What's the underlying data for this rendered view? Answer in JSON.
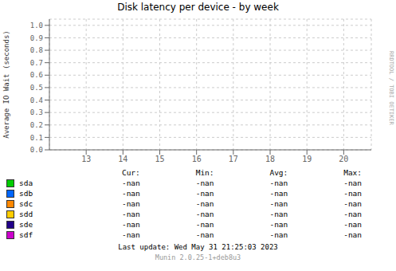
{
  "chart_data": {
    "type": "line",
    "title": "Disk latency per device - by week",
    "y_label": "Average IO Wait (seconds)",
    "x": [],
    "xlim": [
      12.0,
      20.75
    ],
    "xticks": [
      13,
      14,
      15,
      16,
      17,
      18,
      19,
      20
    ],
    "ylim": [
      0.0,
      1.05
    ],
    "yticks": [
      {
        "value": 0.0,
        "label": "0.0"
      },
      {
        "value": 0.1,
        "label": "0.1"
      },
      {
        "value": 0.2,
        "label": "0.2"
      },
      {
        "value": 0.3,
        "label": "0.3"
      },
      {
        "value": 0.4,
        "label": "0.4"
      },
      {
        "value": 0.5,
        "label": "0.5"
      },
      {
        "value": 0.6,
        "label": "0.6"
      },
      {
        "value": 0.7,
        "label": "0.7"
      },
      {
        "value": 0.8,
        "label": "0.8"
      },
      {
        "value": 0.9,
        "label": "0.9"
      },
      {
        "value": 1.0,
        "label": "1.0"
      }
    ],
    "grid": true,
    "series": [
      {
        "name": "sda",
        "color": "#00cc00",
        "values": [],
        "stats": [
          "-nan",
          "-nan",
          "-nan",
          "-nan"
        ]
      },
      {
        "name": "sdb",
        "color": "#0066ff",
        "values": [],
        "stats": [
          "-nan",
          "-nan",
          "-nan",
          "-nan"
        ]
      },
      {
        "name": "sdc",
        "color": "#ff8800",
        "values": [],
        "stats": [
          "-nan",
          "-nan",
          "-nan",
          "-nan"
        ]
      },
      {
        "name": "sdd",
        "color": "#ffcc00",
        "values": [],
        "stats": [
          "-nan",
          "-nan",
          "-nan",
          "-nan"
        ]
      },
      {
        "name": "sde",
        "color": "#220088",
        "values": [],
        "stats": [
          "-nan",
          "-nan",
          "-nan",
          "-nan"
        ]
      },
      {
        "name": "sdf",
        "color": "#cc00cc",
        "values": [],
        "stats": [
          "-nan",
          "-nan",
          "-nan",
          "-nan"
        ]
      }
    ],
    "legend_columns": [
      "Cur:",
      "Min:",
      "Avg:",
      "Max:"
    ],
    "annotations": [
      "Last update: Wed May 31 21:25:03 2023",
      "Munin 2.0.25-1+deb8u3",
      "RRDTOOL / TOBI OETIKER"
    ]
  }
}
